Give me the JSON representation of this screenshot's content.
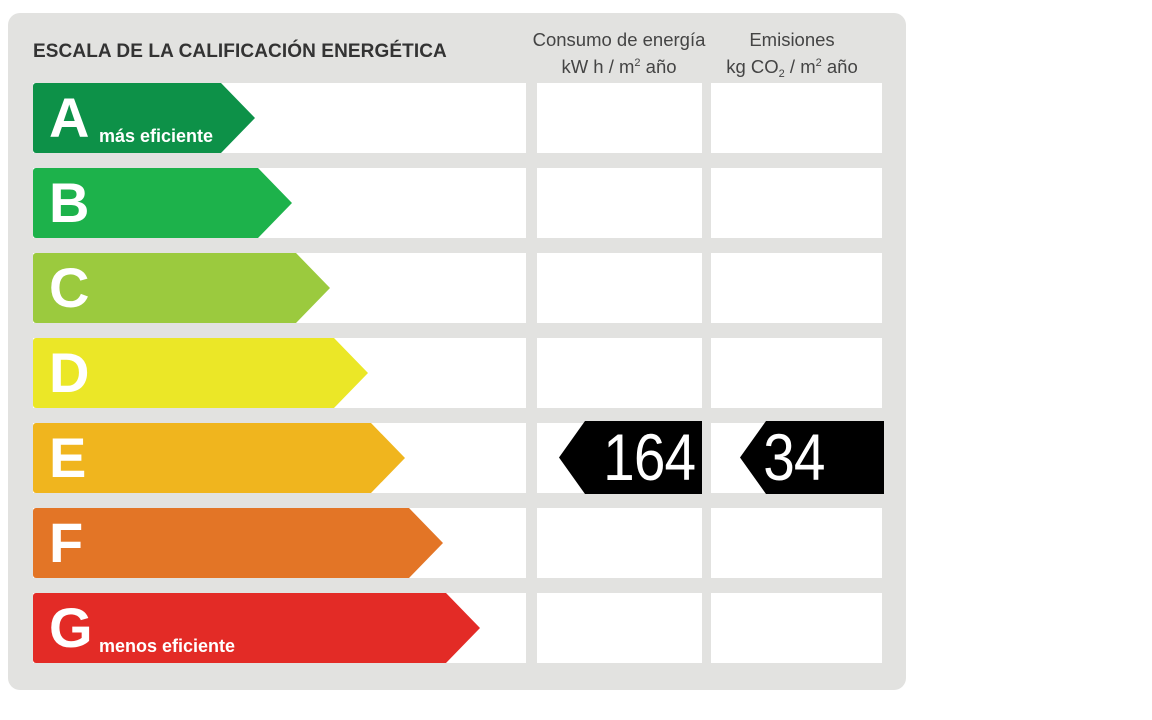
{
  "header": {
    "title": "ESCALA DE LA CALIFICACIÓN ENERGÉTICA",
    "energy_col": {
      "line1": "Consumo de energía",
      "unit_pre": "kW h  / m",
      "unit_sup": "2",
      "unit_post": " año"
    },
    "emissions_col": {
      "line1": "Emisiones",
      "unit_pre": "kg CO",
      "unit_sub": "2",
      "unit_mid": "  / m",
      "unit_sup": "2",
      "unit_post": " año"
    }
  },
  "ratings": [
    {
      "letter": "A",
      "note": "más eficiente",
      "color": "#0d9148"
    },
    {
      "letter": "B",
      "note": "",
      "color": "#1db24b"
    },
    {
      "letter": "C",
      "note": "",
      "color": "#9bca3e"
    },
    {
      "letter": "D",
      "note": "",
      "color": "#ebe727"
    },
    {
      "letter": "E",
      "note": "",
      "color": "#f0b51e"
    },
    {
      "letter": "F",
      "note": "",
      "color": "#e37526"
    },
    {
      "letter": "G",
      "note": "menos eficiente",
      "color": "#e32b26"
    }
  ],
  "result": {
    "rating": "E",
    "energy_value": "164",
    "emissions_value": "34"
  }
}
